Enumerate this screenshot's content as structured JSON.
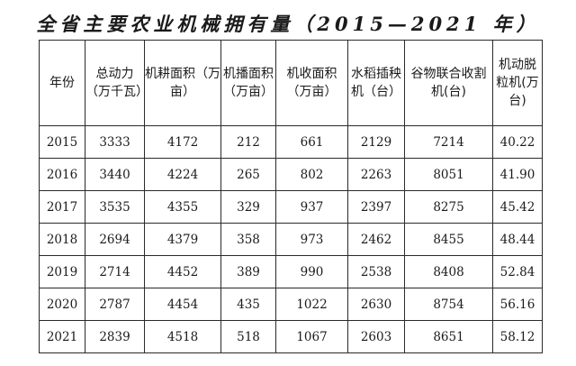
{
  "title": "全省主要农业机械拥有量（2015—2021 年）",
  "table": {
    "headers": [
      "年份",
      "总动力（万千瓦）",
      "机耕面积（万亩）",
      "机播面积（万亩）",
      "机收面积（万亩）",
      "水稻插秧机（台）",
      "谷物联合收割机(台)",
      "机动脱粒机(万台)"
    ],
    "rows": [
      [
        "2015",
        "3333",
        "4172",
        "212",
        "661",
        "2129",
        "7214",
        "40.22"
      ],
      [
        "2016",
        "3440",
        "4224",
        "265",
        "802",
        "2263",
        "8051",
        "41.90"
      ],
      [
        "2017",
        "3535",
        "4355",
        "329",
        "937",
        "2397",
        "8275",
        "45.42"
      ],
      [
        "2018",
        "2694",
        "4379",
        "358",
        "973",
        "2462",
        "8455",
        "48.44"
      ],
      [
        "2019",
        "2714",
        "4452",
        "389",
        "990",
        "2538",
        "8408",
        "52.84"
      ],
      [
        "2020",
        "2787",
        "4454",
        "435",
        "1022",
        "2630",
        "8754",
        "56.16"
      ],
      [
        "2021",
        "2839",
        "4518",
        "518",
        "1067",
        "2603",
        "8651",
        "58.12"
      ]
    ]
  }
}
